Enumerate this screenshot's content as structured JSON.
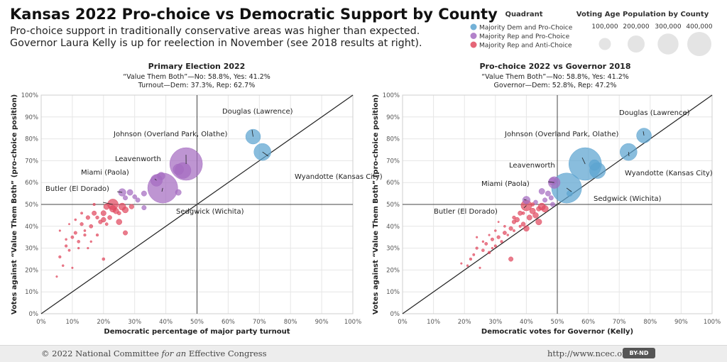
{
  "title": "Kansas 2022 Pro-choice vs Democratic Support by County",
  "subtitle": [
    "Pro-choice support in traditionally conservative areas was higher than expected.",
    "Governor Laura Kelly is up for reelection in November (see 2018 results at right)."
  ],
  "legend": {
    "quadrant_title": "Quadrant",
    "quadrants": [
      {
        "label": "Majority Dem and Pro-Choice",
        "color": "#5ba3d0"
      },
      {
        "label": "Majority Rep and Pro-Choice",
        "color": "#a56cc1"
      },
      {
        "label": "Majority Rep and Anti-Choice",
        "color": "#e04a5f"
      }
    ],
    "size_title": "Voting Age Population by County",
    "sizes": [
      {
        "label": "100,000",
        "value": 100000
      },
      {
        "label": "200,000",
        "value": 200000
      },
      {
        "label": "300,000",
        "value": 300000
      },
      {
        "label": "400,000",
        "value": 400000
      }
    ]
  },
  "footer": {
    "copyright": "© 2022 National Committee",
    "copyright_em": "for an",
    "copyright_end": "Effective Congress",
    "url": "http://www.ncec.org",
    "license": "BY-ND"
  },
  "chart_data": [
    {
      "type": "scatter",
      "title": "Primary Election 2022",
      "subtitle_lines": [
        "“Value Them Both”—No: 58.8%, Yes: 41.2%",
        "Turnout—Dem: 37.3%, Rep: 62.7%"
      ],
      "xlabel": "Democratic percentage of major party turnout",
      "ylabel": "Votes against “Value Them Both” (pro-choice position)",
      "xlim": [
        0,
        100
      ],
      "ylim": [
        0,
        100
      ],
      "xticks": [
        "0%",
        "10%",
        "20%",
        "30%",
        "40%",
        "50%",
        "60%",
        "70%",
        "80%",
        "90%",
        "100%"
      ],
      "yticks": [
        "0%",
        "10%",
        "20%",
        "30%",
        "40%",
        "50%",
        "60%",
        "70%",
        "80%",
        "90%",
        "100%"
      ],
      "reference_lines": [
        {
          "kind": "diagonal"
        },
        {
          "kind": "horizontal",
          "y": 50
        },
        {
          "kind": "vertical",
          "x": 50
        }
      ],
      "labeled_points": [
        {
          "name": "Douglas (Lawrence)",
          "x": 68,
          "y": 81,
          "pop": 95000,
          "quadrant": 0
        },
        {
          "name": "Johnson (Overland Park, Olathe)",
          "x": 46.5,
          "y": 68.5,
          "pop": 460000,
          "quadrant": 1
        },
        {
          "name": "Wyandotte (Kansas City)",
          "x": 71,
          "y": 74,
          "pop": 125000,
          "quadrant": 0
        },
        {
          "name": "Leavenworth",
          "x": 37,
          "y": 61,
          "pop": 60000,
          "quadrant": 1
        },
        {
          "name": "Sedgwick (Wichita)",
          "x": 39,
          "y": 57.5,
          "pop": 390000,
          "quadrant": 1
        },
        {
          "name": "Miami (Paola)",
          "x": 26,
          "y": 55.5,
          "pop": 25000,
          "quadrant": 1
        },
        {
          "name": "Butler (El Dorado)",
          "x": 23,
          "y": 50,
          "pop": 50000,
          "quadrant": 2
        }
      ],
      "other_points": [
        [
          44,
          66,
          50000,
          1
        ],
        [
          45.5,
          65.5,
          110000,
          1
        ],
        [
          38.5,
          63,
          25000,
          1
        ],
        [
          44,
          55.5,
          15000,
          1
        ],
        [
          33,
          55,
          12000,
          1
        ],
        [
          28.5,
          55.5,
          15000,
          1
        ],
        [
          31,
          52,
          9000,
          1
        ],
        [
          27,
          53,
          9000,
          1
        ],
        [
          30,
          53.5,
          8000,
          1
        ],
        [
          33,
          48.5,
          9000,
          1
        ],
        [
          29,
          49,
          10000,
          2
        ],
        [
          21,
          49,
          15000,
          2
        ],
        [
          23,
          48,
          20000,
          2
        ],
        [
          26,
          49,
          22000,
          2
        ],
        [
          27,
          47.5,
          16000,
          2
        ],
        [
          20,
          46,
          12000,
          2
        ],
        [
          24,
          47,
          14000,
          2
        ],
        [
          20,
          43,
          10000,
          2
        ],
        [
          22,
          44,
          8000,
          2
        ],
        [
          19,
          42,
          7000,
          2
        ],
        [
          17,
          46,
          9000,
          2
        ],
        [
          15,
          44,
          7000,
          2
        ],
        [
          16,
          40,
          6000,
          2
        ],
        [
          13,
          41,
          5000,
          2
        ],
        [
          25,
          42,
          14000,
          2
        ],
        [
          27,
          37,
          9000,
          2
        ],
        [
          11,
          37,
          4500,
          2
        ],
        [
          10,
          35,
          4000,
          2
        ],
        [
          12,
          33,
          3500,
          2
        ],
        [
          8,
          31,
          3000,
          2
        ],
        [
          9,
          29,
          2500,
          2
        ],
        [
          6,
          26,
          3000,
          2
        ],
        [
          7,
          22,
          2000,
          2
        ],
        [
          10,
          21,
          1500,
          2
        ],
        [
          5,
          17,
          1500,
          2
        ],
        [
          20,
          25,
          3500,
          2
        ],
        [
          18,
          36,
          3000,
          2
        ],
        [
          14,
          36,
          3000,
          2
        ],
        [
          11,
          43,
          2000,
          2
        ],
        [
          13,
          46,
          2500,
          2
        ],
        [
          17,
          50,
          3000,
          2
        ],
        [
          6,
          38,
          1500,
          2
        ],
        [
          8,
          34,
          2000,
          2
        ],
        [
          12,
          30,
          1800,
          2
        ],
        [
          15,
          30,
          1600,
          2
        ],
        [
          18,
          44,
          5000,
          2
        ],
        [
          21,
          41,
          4000,
          2
        ],
        [
          25,
          46,
          6000,
          2
        ],
        [
          14,
          38,
          2200,
          2
        ],
        [
          9,
          41,
          1200,
          2
        ],
        [
          16,
          33,
          1800,
          2
        ]
      ]
    },
    {
      "type": "scatter",
      "title": "Pro-choice 2022 vs Governor 2018",
      "subtitle_lines": [
        "“Value Them Both”—No: 58.8%, Yes: 41.2%",
        "Governor—Dem: 52.8%, Rep: 47.2%"
      ],
      "xlabel": "Democratic votes for Governor (Kelly)",
      "ylabel": "Votes against “Value Them Both” (pro-choice position)",
      "xlim": [
        0,
        100
      ],
      "ylim": [
        0,
        100
      ],
      "xticks": [
        "0%",
        "10%",
        "20%",
        "30%",
        "40%",
        "50%",
        "60%",
        "70%",
        "80%",
        "90%",
        "100%"
      ],
      "yticks": [
        "0%",
        "10%",
        "20%",
        "30%",
        "40%",
        "50%",
        "60%",
        "70%",
        "80%",
        "90%",
        "100%"
      ],
      "reference_lines": [
        {
          "kind": "diagonal"
        },
        {
          "kind": "horizontal",
          "y": 50
        },
        {
          "kind": "vertical",
          "x": 50
        }
      ],
      "labeled_points": [
        {
          "name": "Douglas (Lawrence)",
          "x": 78,
          "y": 81.5,
          "pop": 95000,
          "quadrant": 0
        },
        {
          "name": "Johnson (Overland Park, Olathe)",
          "x": 59,
          "y": 68.5,
          "pop": 460000,
          "quadrant": 0
        },
        {
          "name": "Wyandotte (Kansas City)",
          "x": 73,
          "y": 74,
          "pop": 125000,
          "quadrant": 0
        },
        {
          "name": "Leavenworth",
          "x": 49,
          "y": 60,
          "pop": 60000,
          "quadrant": 1
        },
        {
          "name": "Sedgwick (Wichita)",
          "x": 53,
          "y": 57.5,
          "pop": 390000,
          "quadrant": 0
        },
        {
          "name": "Miami (Paola)",
          "x": 40,
          "y": 52,
          "pop": 25000,
          "quadrant": 1
        },
        {
          "name": "Butler (El Dorado)",
          "x": 40,
          "y": 49.5,
          "pop": 50000,
          "quadrant": 2
        }
      ],
      "other_points": [
        [
          62,
          68,
          50000,
          0
        ],
        [
          63,
          65.5,
          110000,
          0
        ],
        [
          54,
          55,
          15000,
          0
        ],
        [
          48.5,
          60.5,
          25000,
          1
        ],
        [
          47,
          55,
          12000,
          1
        ],
        [
          45,
          56,
          15000,
          1
        ],
        [
          46,
          52,
          9000,
          1
        ],
        [
          48,
          53,
          9000,
          1
        ],
        [
          43,
          51,
          8000,
          1
        ],
        [
          48.5,
          50,
          9000,
          1
        ],
        [
          44,
          48,
          10000,
          2
        ],
        [
          42,
          47,
          15000,
          2
        ],
        [
          46,
          48,
          20000,
          2
        ],
        [
          45,
          49,
          22000,
          2
        ],
        [
          44,
          42,
          16000,
          2
        ],
        [
          41,
          44,
          12000,
          2
        ],
        [
          43,
          45,
          14000,
          2
        ],
        [
          37,
          43,
          10000,
          2
        ],
        [
          39,
          41,
          8000,
          2
        ],
        [
          36,
          42,
          7000,
          2
        ],
        [
          38,
          46,
          9000,
          2
        ],
        [
          35,
          39,
          7000,
          2
        ],
        [
          33,
          37,
          6000,
          2
        ],
        [
          31,
          35,
          5000,
          2
        ],
        [
          40,
          39,
          14000,
          2
        ],
        [
          35,
          25,
          9000,
          2
        ],
        [
          29,
          34,
          4500,
          2
        ],
        [
          27,
          32,
          4000,
          2
        ],
        [
          26,
          29,
          3500,
          2
        ],
        [
          24,
          30,
          3000,
          2
        ],
        [
          23,
          27,
          2500,
          2
        ],
        [
          22,
          25,
          3000,
          2
        ],
        [
          21,
          22,
          2000,
          2
        ],
        [
          25,
          21,
          1500,
          2
        ],
        [
          19,
          23,
          1500,
          2
        ],
        [
          28,
          28,
          3500,
          2
        ],
        [
          30,
          31,
          3000,
          2
        ],
        [
          32,
          33,
          3000,
          2
        ],
        [
          34,
          36,
          2000,
          2
        ],
        [
          36,
          38,
          2500,
          2
        ],
        [
          38,
          40,
          3000,
          2
        ],
        [
          28,
          36,
          1500,
          2
        ],
        [
          30,
          38,
          2000,
          2
        ],
        [
          26,
          33,
          1800,
          2
        ],
        [
          24,
          35,
          1600,
          2
        ],
        [
          36,
          44,
          5000,
          2
        ],
        [
          39,
          46,
          4000,
          2
        ],
        [
          42,
          50,
          6000,
          2
        ],
        [
          33,
          40,
          2200,
          2
        ],
        [
          31,
          42,
          1200,
          2
        ],
        [
          29,
          30,
          1800,
          2
        ]
      ]
    }
  ]
}
